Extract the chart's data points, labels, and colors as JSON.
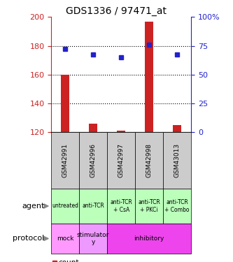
{
  "title": "GDS1336 / 97471_at",
  "samples": [
    "GSM42991",
    "GSM42996",
    "GSM42997",
    "GSM42998",
    "GSM43013"
  ],
  "count_values": [
    160,
    126,
    121,
    197,
    125
  ],
  "count_base": 120,
  "percentile_values": [
    178,
    174,
    172,
    181,
    174
  ],
  "ylim_left": [
    120,
    200
  ],
  "ylim_right": [
    0,
    100
  ],
  "left_ticks": [
    120,
    140,
    160,
    180,
    200
  ],
  "right_ticks": [
    0,
    25,
    50,
    75,
    100
  ],
  "right_tick_labels": [
    "0",
    "25",
    "50",
    "75",
    "100%"
  ],
  "bar_color": "#cc2222",
  "dot_color": "#2222cc",
  "agent_labels": [
    "untreated",
    "anti-TCR",
    "anti-TCR\n+ CsA",
    "anti-TCR\n+ PKCi",
    "anti-TCR\n+ Combo"
  ],
  "agent_bg": "#bbffbb",
  "sample_bg": "#cccccc",
  "left_axis_color": "#cc2222",
  "right_axis_color": "#2222cc",
  "proto_configs": [
    [
      0,
      1,
      "mock",
      "#ff99ff"
    ],
    [
      1,
      2,
      "stimulator\ny",
      "#ee99ff"
    ],
    [
      2,
      5,
      "inhibitory",
      "#ee44ee"
    ]
  ]
}
